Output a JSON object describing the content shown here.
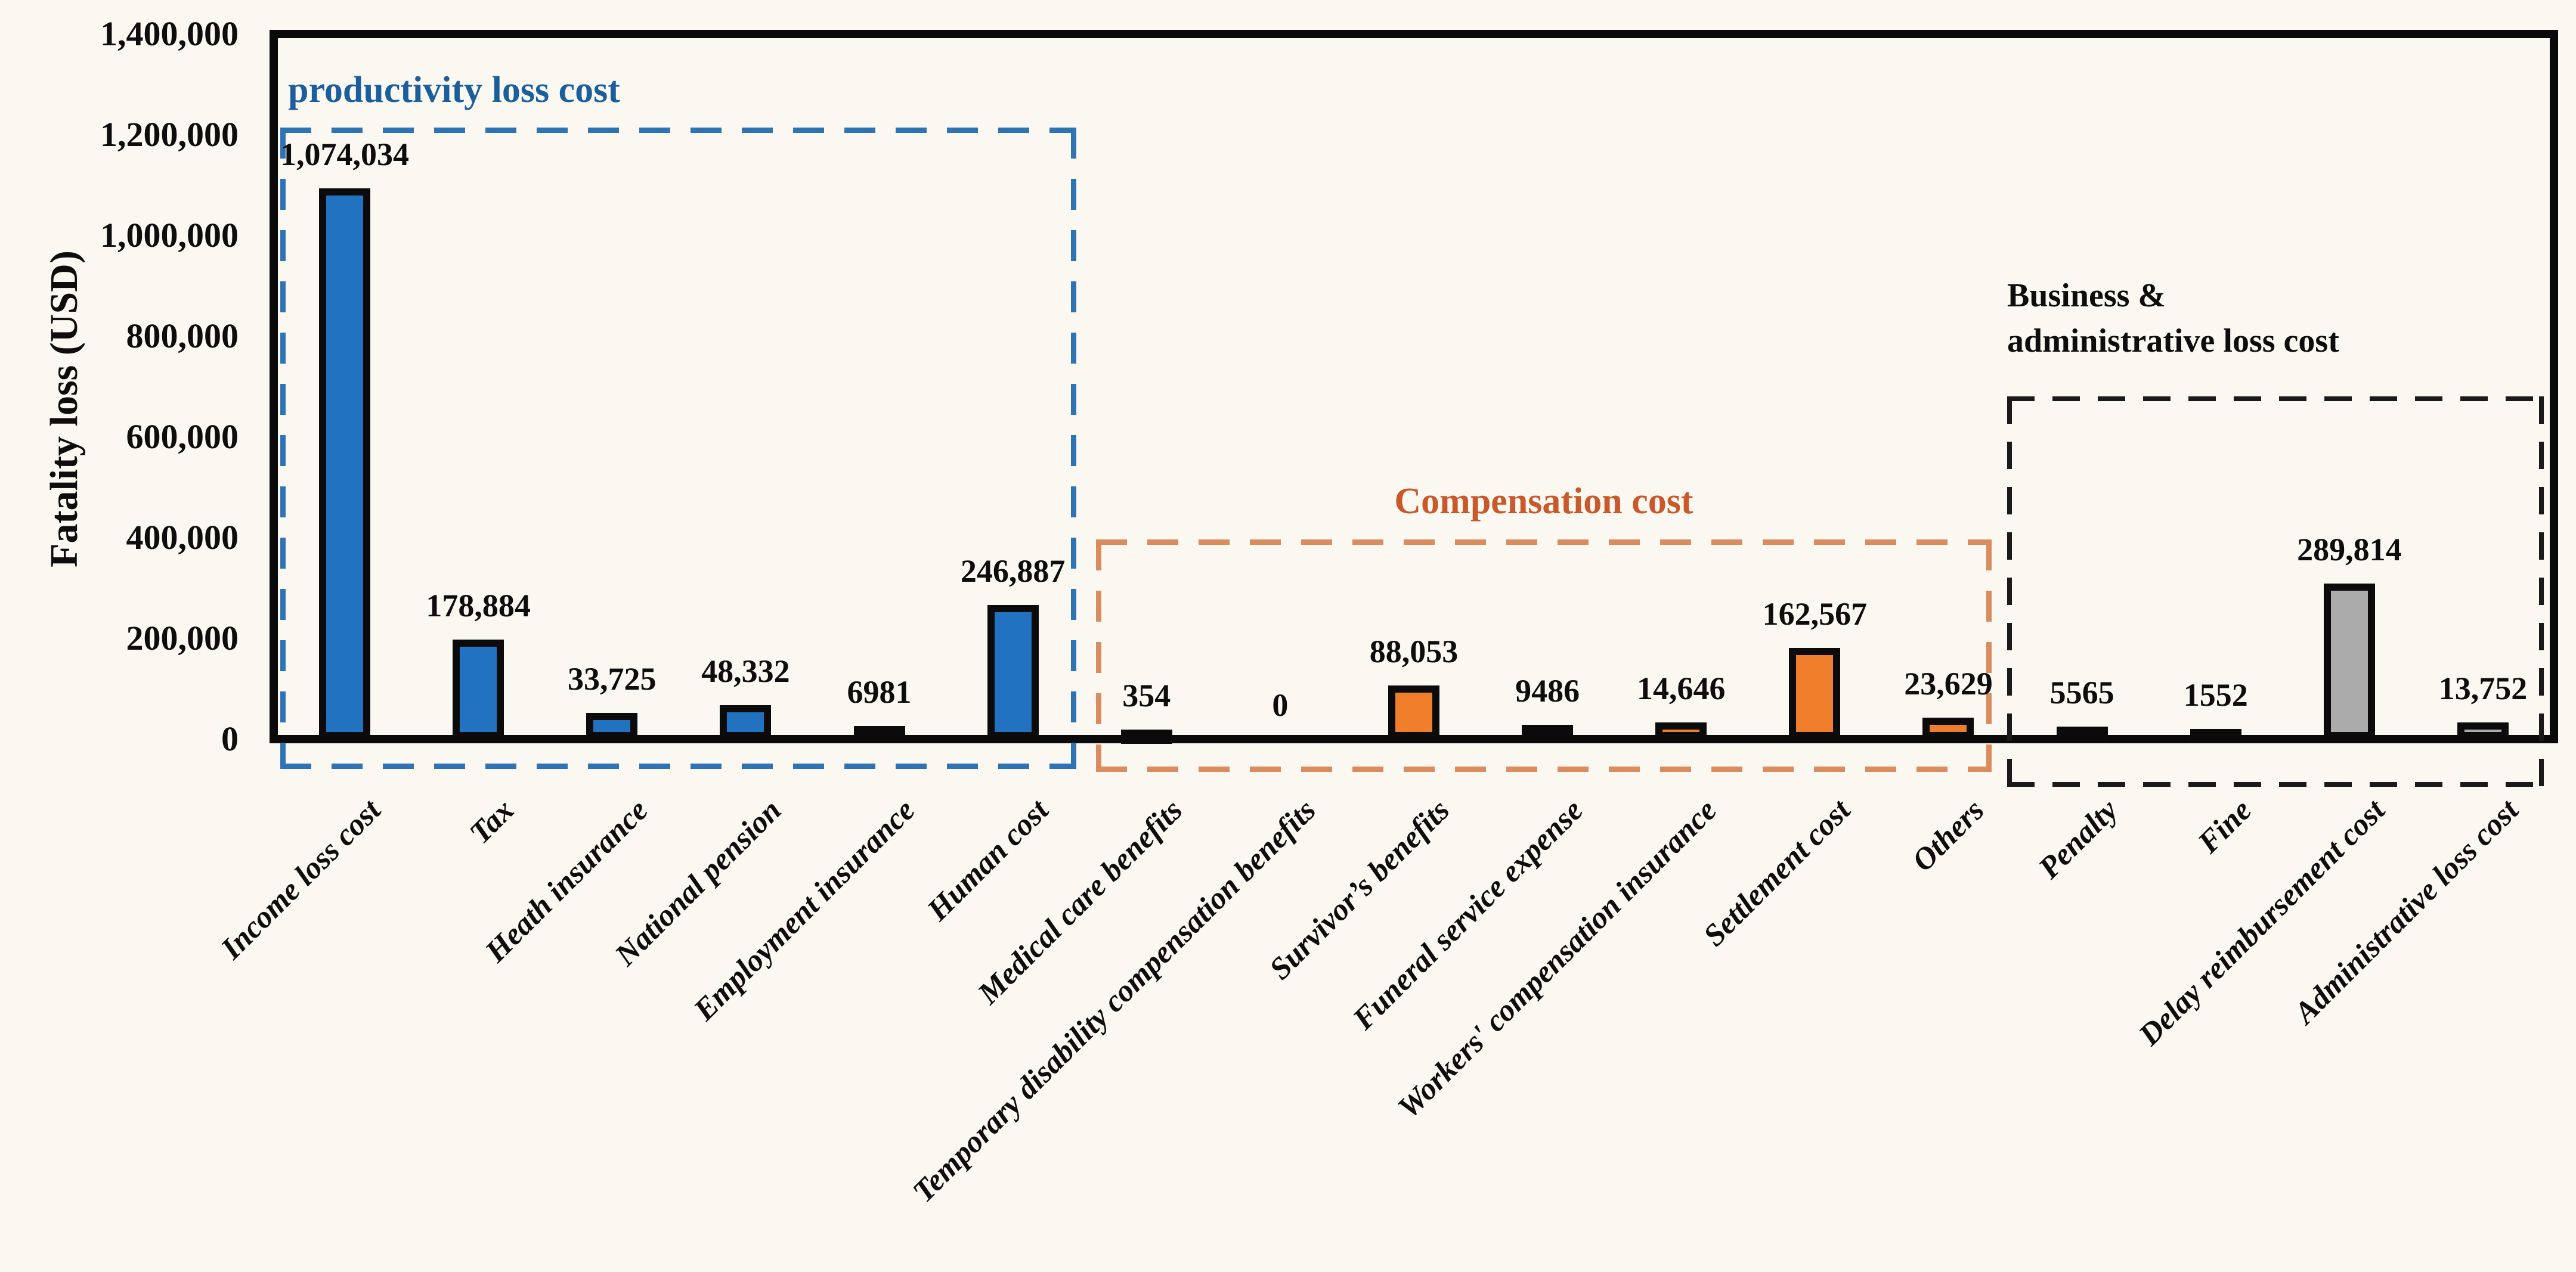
{
  "chart_data": {
    "type": "bar",
    "ylabel": "Fatality loss (USD)",
    "ylim": [
      0,
      1400000
    ],
    "ytick_interval": 200000,
    "ytick_labels": [
      "0",
      "200,000",
      "400,000",
      "600,000",
      "800,000",
      "1,000,000",
      "1,200,000",
      "1,400,000"
    ],
    "grid": false,
    "legend": false,
    "background_color": "#fbf8f1",
    "axis_color": "#0a0a0a",
    "categories": [
      "Income loss cost",
      "Tax",
      "Heath insurance",
      "National pension",
      "Employment insurance",
      "Human cost",
      "Medical care benefits",
      "Temporary disability compensation benefits",
      "Survivor’s benefits",
      "Funeral service expense",
      "Workers' compensation insurance",
      "Settlement cost",
      "Others",
      "Penalty",
      "Fine",
      "Delay reimbursement cost",
      "Administrative loss cost"
    ],
    "values": [
      1074034,
      178884,
      33725,
      48332,
      6981,
      246887,
      354,
      0,
      88053,
      9486,
      14646,
      162567,
      23629,
      5565,
      1552,
      289814,
      13752
    ],
    "value_labels": [
      "1,074,034",
      "178,884",
      "33,725",
      "48,332",
      "6981",
      "246,887",
      "354",
      "0",
      "88,053",
      "9486",
      "14,646",
      "162,567",
      "23,629",
      "5565",
      "1552",
      "289,814",
      "13,752"
    ],
    "groups": [
      {
        "title": "productivity loss cost",
        "title_color": "#1b5e9c",
        "dash_color": "#2e74b5",
        "bar_color": "#2272c2",
        "range": [
          0,
          5
        ]
      },
      {
        "title": "Compensation cost",
        "title_color": "#c9582b",
        "dash_color": "#d98c5d",
        "bar_color": "#f07d29",
        "range": [
          6,
          12
        ]
      },
      {
        "title": "Business &\nadministrative loss cost",
        "title_color": "#0d0d0d",
        "dash_color": "#1a1a1a",
        "bar_color": "#ababab",
        "range": [
          13,
          16
        ]
      }
    ]
  }
}
